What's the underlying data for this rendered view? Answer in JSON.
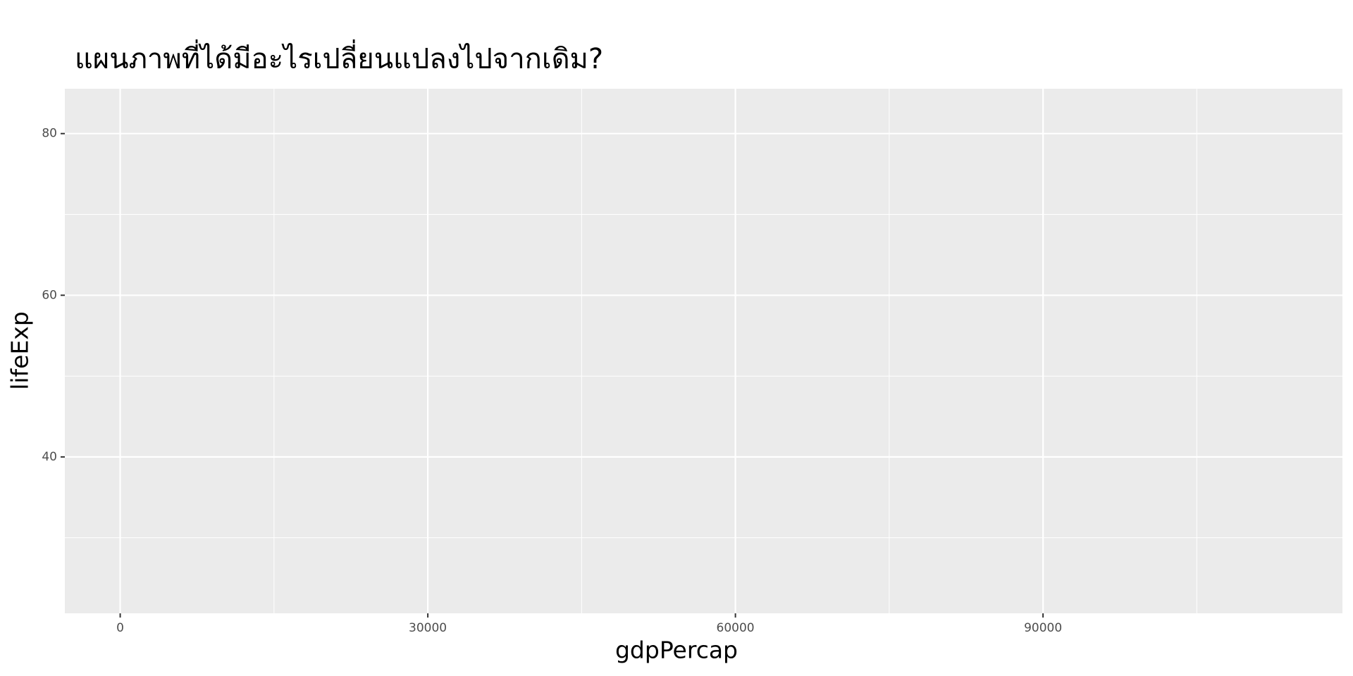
{
  "chart_data": {
    "type": "scatter",
    "title": "แผนภาพที่ได้มีอะไรเปลี่ยนแปลงไปจากเดิม?",
    "x_label": "gdpPercap",
    "y_label": "lifeExp",
    "xlim": [
      -5400,
      119200
    ],
    "ylim": [
      20.65,
      85.55
    ],
    "xticks": [
      0,
      30000,
      60000,
      90000
    ],
    "yticks": [
      40,
      60,
      80
    ],
    "x_minor_ticks": [
      15000,
      45000,
      75000,
      105000
    ],
    "y_minor_ticks": [
      30,
      50,
      70
    ],
    "grid": true,
    "panel_color": "#ebebeb"
  }
}
